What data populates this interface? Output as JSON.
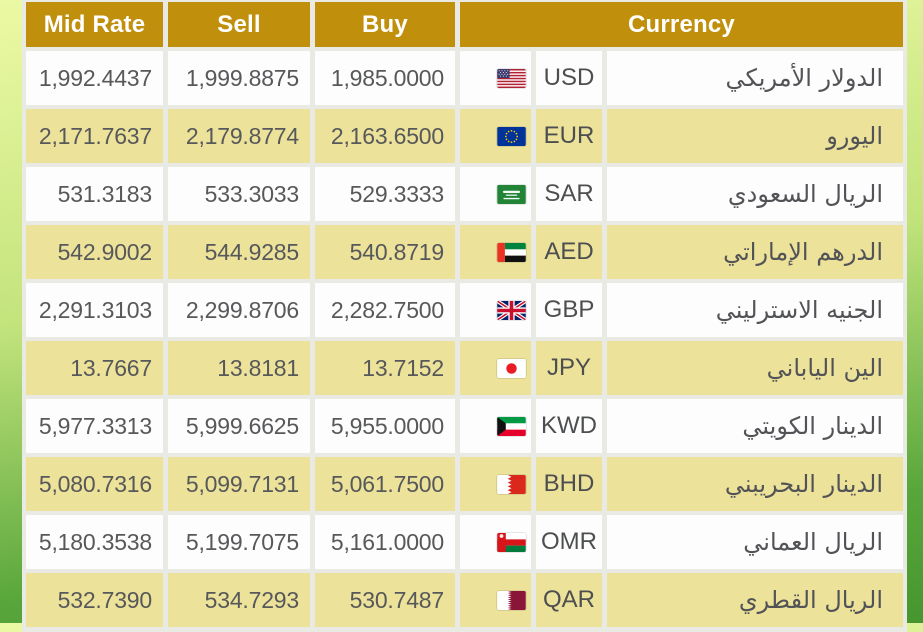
{
  "theme": {
    "header_bg": "#c0900d",
    "header_text": "#ffffff",
    "row_bg": "#fdfdfd",
    "row_alt_bg": "#ece29a",
    "cell_text": "#57585a",
    "gap_bg": "#e9eae3",
    "frame_top": "#ecf9a4",
    "frame_mid": "#c2e37c",
    "frame_bottom": "#47952e"
  },
  "table": {
    "headers": {
      "mid_rate": "Mid Rate",
      "sell": "Sell",
      "buy": "Buy",
      "currency": "Currency"
    },
    "rows": [
      {
        "mid": "1,992.4437",
        "sell": "1,999.8875",
        "buy": "1,985.0000",
        "code": "USD",
        "name_ar": "الدولار الأمريكي",
        "flag": "us"
      },
      {
        "mid": "2,171.7637",
        "sell": "2,179.8774",
        "buy": "2,163.6500",
        "code": "EUR",
        "name_ar": "اليورو",
        "flag": "eu"
      },
      {
        "mid": "531.3183",
        "sell": "533.3033",
        "buy": "529.3333",
        "code": "SAR",
        "name_ar": "الريال السعودي",
        "flag": "sa"
      },
      {
        "mid": "542.9002",
        "sell": "544.9285",
        "buy": "540.8719",
        "code": "AED",
        "name_ar": "الدرهم الإماراتي",
        "flag": "ae"
      },
      {
        "mid": "2,291.3103",
        "sell": "2,299.8706",
        "buy": "2,282.7500",
        "code": "GBP",
        "name_ar": "الجنيه الاسترليني",
        "flag": "gb"
      },
      {
        "mid": "13.7667",
        "sell": "13.8181",
        "buy": "13.7152",
        "code": "JPY",
        "name_ar": "الين الياباني",
        "flag": "jp"
      },
      {
        "mid": "5,977.3313",
        "sell": "5,999.6625",
        "buy": "5,955.0000",
        "code": "KWD",
        "name_ar": "الدينار الكويتي",
        "flag": "kw"
      },
      {
        "mid": "5,080.7316",
        "sell": "5,099.7131",
        "buy": "5,061.7500",
        "code": "BHD",
        "name_ar": "الدينار البحريبني",
        "flag": "bh"
      },
      {
        "mid": "5,180.3538",
        "sell": "5,199.7075",
        "buy": "5,161.0000",
        "code": "OMR",
        "name_ar": "الريال العماني",
        "flag": "om"
      },
      {
        "mid": "532.7390",
        "sell": "534.7293",
        "buy": "530.7487",
        "code": "QAR",
        "name_ar": "الريال القطري",
        "flag": "qa"
      }
    ]
  }
}
